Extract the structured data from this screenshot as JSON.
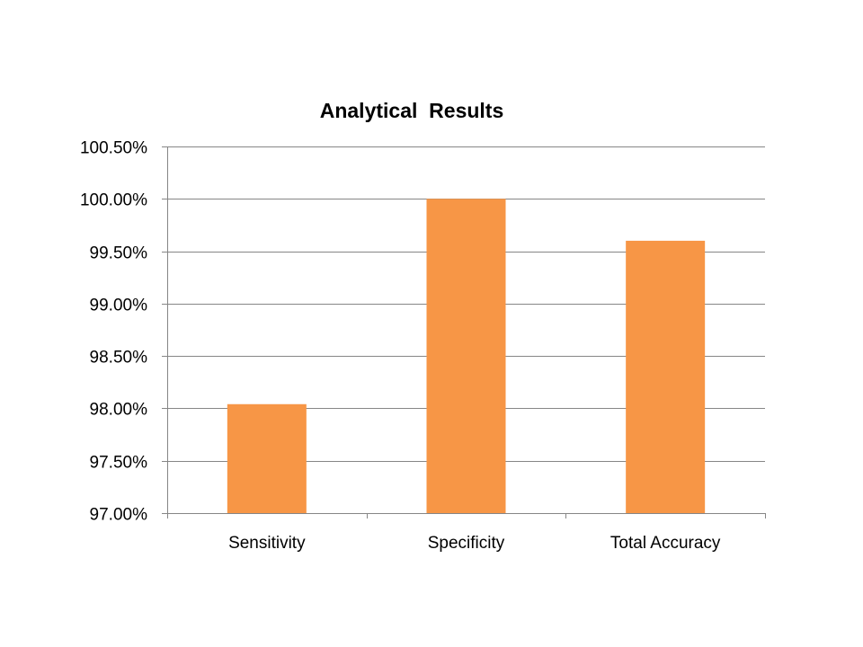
{
  "chart_data": {
    "type": "bar",
    "title": "Analytical  Results",
    "categories": [
      "Sensitivity",
      "Specificity",
      "Total Accuracy"
    ],
    "values": [
      98.04,
      100.0,
      99.6
    ],
    "unit": "%",
    "ylim": [
      97.0,
      100.5
    ],
    "yticks": [
      "97.00%",
      "97.50%",
      "98.00%",
      "98.50%",
      "99.00%",
      "99.50%",
      "100.00%",
      "100.50%"
    ],
    "ytick_values": [
      97.0,
      97.5,
      98.0,
      98.5,
      99.0,
      99.5,
      100.0,
      100.5
    ],
    "grid": true,
    "legend": "none",
    "bar_color": "#F79646",
    "grid_color": "#868686",
    "axis_color": "#868686"
  }
}
